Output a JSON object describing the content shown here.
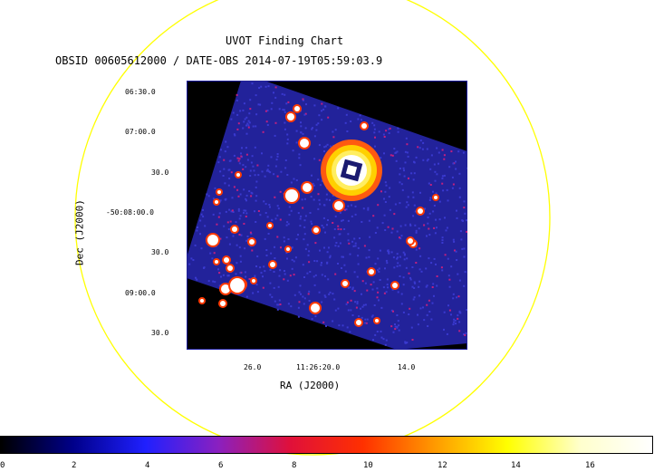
{
  "title": "UVOT Finding Chart",
  "subtitle": "OBSID 00605612000 / DATE-OBS 2014-07-19T05:59:03.9",
  "xlabel": "RA (J2000)",
  "ylabel": "Dec (J2000)",
  "ra_ticks": [
    "26.0",
    "11:26:20.0",
    "14.0"
  ],
  "dec_ticks": [
    "06:30.0",
    "07:00.0",
    "30.0",
    "-50:08:00.0",
    "30.0",
    "09:00.0",
    "30.0"
  ],
  "colorbar": {
    "ticks": [
      "0",
      "2",
      "4",
      "6",
      "8",
      "10",
      "12",
      "14",
      "16"
    ],
    "colors": [
      "#000000",
      "#00008a",
      "#2020ff",
      "#8a20c0",
      "#e0103a",
      "#ff3000",
      "#ff9a00",
      "#ffff00",
      "#ffffcc",
      "#ffffff"
    ]
  },
  "circle_color": "#ffff00",
  "image_colors": {
    "background": "#22229a",
    "noise": "#3a3ad0",
    "hot": "#ff3a00",
    "mid": "#ffd000",
    "core": "#ffffff"
  }
}
